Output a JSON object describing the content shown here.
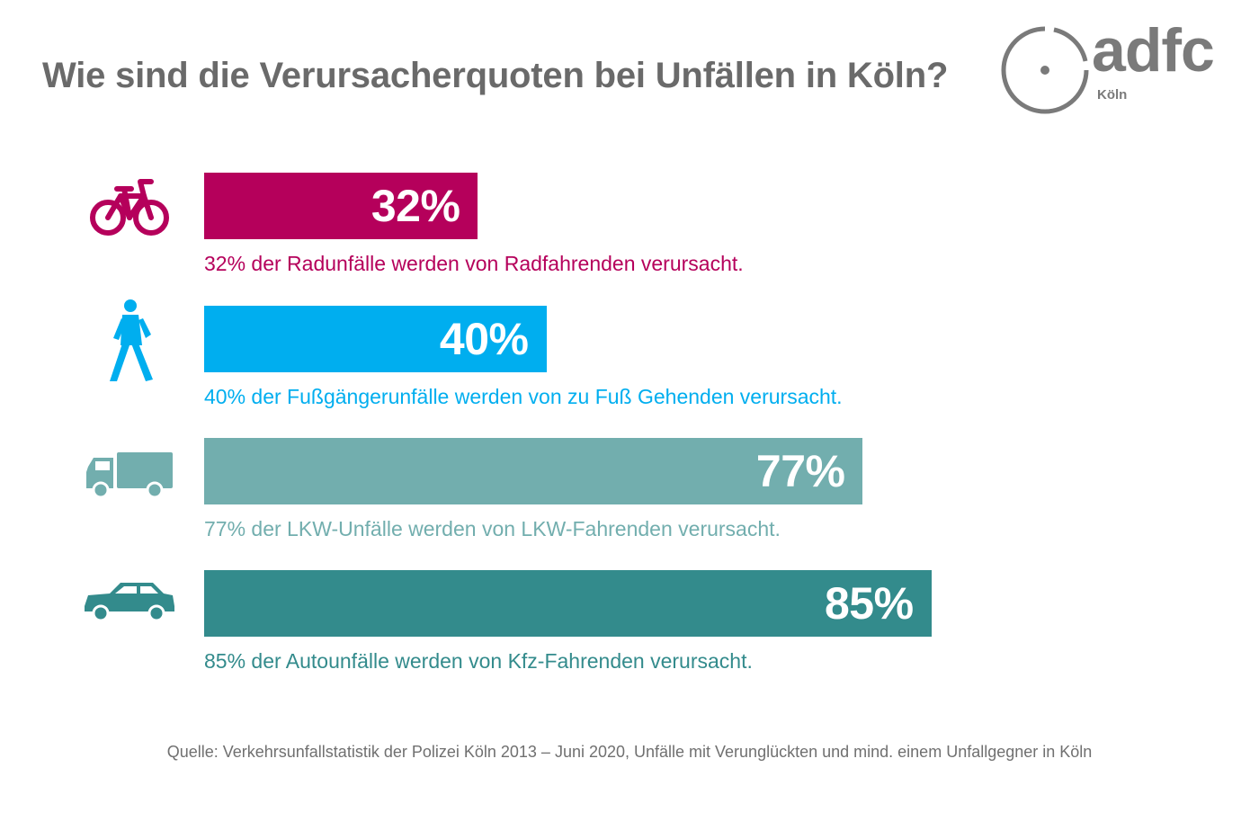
{
  "title": "Wie sind die Verursacherquoten bei Unfällen in Köln?",
  "logo": {
    "text": "adfc",
    "subtext": "Köln"
  },
  "chart_data": {
    "type": "bar",
    "orientation": "horizontal",
    "xlim": [
      0,
      100
    ],
    "categories": [
      "Radunfälle",
      "Fußgängerunfälle",
      "LKW-Unfälle",
      "Autounfälle"
    ],
    "values": [
      32,
      40,
      77,
      85
    ],
    "value_labels": [
      "32%",
      "40%",
      "77%",
      "85%"
    ],
    "captions": [
      "32% der Radunfälle werden von Radfahrenden verursacht.",
      "40% der Fußgängerunfälle werden von zu Fuß Gehenden verursacht.",
      "77% der LKW-Unfälle werden von LKW-Fahrenden verursacht.",
      "85% der Autounfälle werden von Kfz-Fahrenden verursacht."
    ],
    "icons": [
      "bicycle-icon",
      "pedestrian-icon",
      "truck-icon",
      "car-icon"
    ],
    "colors": [
      "#b5005b",
      "#00aeef",
      "#72aeae",
      "#338b8c"
    ]
  },
  "source": "Quelle: Verkehrsunfallstatistik der Polizei Köln 2013 – Juni 2020, Unfälle mit Verunglückten und mind. einem Unfallgegner in Köln"
}
